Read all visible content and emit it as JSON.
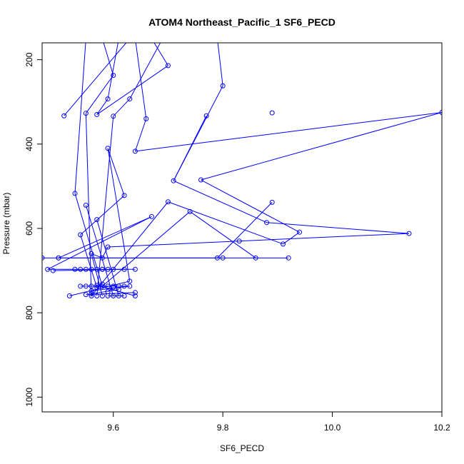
{
  "chart_data": {
    "type": "line",
    "title": "ATOM4 Northeast_Pacific_1 SF6_PECD",
    "xlabel": "SF6_PECD",
    "ylabel": "Pressure (mbar)",
    "xlim": [
      9.47,
      10.2
    ],
    "ylim": [
      1035,
      160
    ],
    "y_inverted": true,
    "xticks": [
      "9.6",
      "9.8",
      "10.0",
      "10.2"
    ],
    "yticks": [
      "200",
      "400",
      "600",
      "800",
      "1000"
    ],
    "series_color": "#0000ff",
    "marker": "open-circle",
    "grid": false,
    "legend": "none",
    "points": [
      [
        9.58,
        150
      ],
      [
        9.6,
        237
      ],
      [
        9.55,
        327
      ],
      [
        9.61,
        150
      ],
      [
        9.59,
        293
      ],
      [
        9.57,
        330
      ],
      [
        9.63,
        150
      ],
      [
        9.51,
        333
      ],
      [
        9.56,
        760
      ],
      [
        9.64,
        150
      ],
      [
        9.66,
        340
      ],
      [
        9.64,
        417
      ],
      [
        9.89,
        326
      ],
      [
        10.2,
        325
      ],
      [
        9.69,
        150
      ],
      [
        9.7,
        214
      ],
      [
        9.63,
        293
      ],
      [
        9.6,
        334
      ],
      [
        9.53,
        517
      ],
      [
        9.57,
        760
      ],
      [
        9.79,
        150
      ],
      [
        9.77,
        333
      ],
      [
        9.71,
        487
      ],
      [
        9.76,
        485
      ],
      [
        9.8,
        262
      ],
      [
        9.7,
        537
      ],
      [
        9.74,
        560
      ],
      [
        9.86,
        670
      ],
      [
        9.89,
        538
      ],
      [
        9.79,
        670
      ],
      [
        9.94,
        609
      ],
      [
        9.91,
        637
      ],
      [
        9.83,
        630
      ],
      [
        10.14,
        612
      ],
      [
        9.88,
        586
      ],
      [
        9.57,
        579
      ],
      [
        9.62,
        522
      ],
      [
        9.58,
        670
      ],
      [
        9.47,
        670
      ],
      [
        9.67,
        572
      ],
      [
        9.59,
        644
      ],
      [
        9.5,
        670
      ],
      [
        9.5,
        670
      ],
      [
        9.92,
        670
      ],
      [
        9.8,
        670
      ],
      [
        9.56,
        660
      ],
      [
        9.55,
        545
      ],
      [
        9.58,
        697
      ],
      [
        9.48,
        697
      ],
      [
        9.49,
        700
      ],
      [
        9.53,
        697
      ],
      [
        9.54,
        697
      ],
      [
        9.55,
        697
      ],
      [
        9.56,
        697
      ],
      [
        9.57,
        697
      ],
      [
        9.58,
        697
      ],
      [
        9.59,
        697
      ],
      [
        9.6,
        697
      ],
      [
        9.62,
        697
      ],
      [
        9.64,
        697
      ],
      [
        9.54,
        615
      ],
      [
        9.59,
        410
      ],
      [
        9.57,
        740
      ],
      [
        9.54,
        737
      ],
      [
        9.55,
        737
      ],
      [
        9.56,
        737
      ],
      [
        9.58,
        737
      ],
      [
        9.59,
        737
      ],
      [
        9.6,
        737
      ],
      [
        9.61,
        737
      ],
      [
        9.62,
        737
      ],
      [
        9.63,
        737
      ],
      [
        9.63,
        725
      ],
      [
        9.61,
        760
      ],
      [
        9.58,
        732
      ],
      [
        9.59,
        760
      ],
      [
        9.57,
        735
      ],
      [
        9.52,
        760
      ],
      [
        9.55,
        757
      ],
      [
        9.56,
        755
      ],
      [
        9.6,
        760
      ],
      [
        9.62,
        760
      ],
      [
        9.64,
        760
      ],
      [
        9.64,
        752
      ],
      [
        9.59,
        750
      ],
      [
        9.58,
        760
      ],
      [
        9.61,
        745
      ],
      [
        9.6,
        740
      ],
      [
        9.56,
        748
      ]
    ],
    "segments": [
      [
        [
          9.58,
          150
        ],
        [
          9.6,
          237
        ]
      ],
      [
        [
          9.6,
          237
        ],
        [
          9.55,
          327
        ]
      ],
      [
        [
          9.55,
          327
        ],
        [
          9.56,
          760
        ]
      ],
      [
        [
          9.61,
          150
        ],
        [
          9.59,
          293
        ]
      ],
      [
        [
          9.59,
          293
        ],
        [
          9.57,
          330
        ]
      ],
      [
        [
          9.63,
          150
        ],
        [
          9.51,
          333
        ]
      ],
      [
        [
          9.64,
          150
        ],
        [
          9.66,
          340
        ]
      ],
      [
        [
          9.66,
          340
        ],
        [
          9.64,
          417
        ]
      ],
      [
        [
          9.64,
          417
        ],
        [
          10.2,
          325
        ]
      ],
      [
        [
          9.69,
          150
        ],
        [
          9.63,
          293
        ]
      ],
      [
        [
          9.63,
          293
        ],
        [
          9.6,
          334
        ]
      ],
      [
        [
          9.6,
          334
        ],
        [
          9.57,
          760
        ]
      ],
      [
        [
          9.55,
          150
        ],
        [
          9.53,
          517
        ]
      ],
      [
        [
          9.53,
          517
        ],
        [
          9.58,
          737
        ]
      ],
      [
        [
          9.7,
          214
        ],
        [
          9.67,
          150
        ]
      ],
      [
        [
          9.7,
          214
        ],
        [
          9.57,
          330
        ]
      ],
      [
        [
          9.79,
          150
        ],
        [
          9.8,
          262
        ]
      ],
      [
        [
          9.8,
          262
        ],
        [
          9.71,
          487
        ]
      ],
      [
        [
          9.71,
          487
        ],
        [
          9.77,
          333
        ]
      ],
      [
        [
          9.71,
          487
        ],
        [
          9.88,
          586
        ]
      ],
      [
        [
          9.88,
          586
        ],
        [
          10.14,
          612
        ]
      ],
      [
        [
          10.14,
          612
        ],
        [
          9.59,
          644
        ]
      ],
      [
        [
          9.76,
          485
        ],
        [
          10.2,
          325
        ]
      ],
      [
        [
          9.76,
          485
        ],
        [
          9.94,
          609
        ]
      ],
      [
        [
          9.94,
          609
        ],
        [
          9.91,
          637
        ]
      ],
      [
        [
          9.91,
          637
        ],
        [
          9.7,
          537
        ]
      ],
      [
        [
          9.7,
          537
        ],
        [
          9.56,
          760
        ]
      ],
      [
        [
          9.86,
          670
        ],
        [
          9.74,
          560
        ]
      ],
      [
        [
          9.74,
          560
        ],
        [
          9.58,
          737
        ]
      ],
      [
        [
          9.89,
          538
        ],
        [
          9.79,
          670
        ]
      ],
      [
        [
          9.79,
          670
        ],
        [
          9.5,
          670
        ]
      ],
      [
        [
          9.47,
          670
        ],
        [
          9.92,
          670
        ]
      ],
      [
        [
          9.5,
          670
        ],
        [
          9.67,
          572
        ]
      ],
      [
        [
          9.67,
          572
        ],
        [
          9.48,
          697
        ]
      ],
      [
        [
          9.48,
          697
        ],
        [
          9.64,
          697
        ]
      ],
      [
        [
          9.49,
          700
        ],
        [
          9.62,
          697
        ]
      ],
      [
        [
          9.54,
          615
        ],
        [
          9.62,
          522
        ]
      ],
      [
        [
          9.62,
          522
        ],
        [
          9.59,
          410
        ]
      ],
      [
        [
          9.59,
          410
        ],
        [
          9.63,
          725
        ]
      ],
      [
        [
          9.54,
          615
        ],
        [
          9.57,
          740
        ]
      ],
      [
        [
          9.55,
          545
        ],
        [
          9.6,
          760
        ]
      ],
      [
        [
          9.57,
          579
        ],
        [
          9.61,
          760
        ]
      ],
      [
        [
          9.59,
          644
        ],
        [
          9.58,
          670
        ]
      ],
      [
        [
          9.58,
          670
        ],
        [
          9.56,
          660
        ]
      ],
      [
        [
          9.56,
          660
        ],
        [
          9.58,
          760
        ]
      ],
      [
        [
          9.54,
          737
        ],
        [
          9.63,
          737
        ]
      ],
      [
        [
          9.52,
          760
        ],
        [
          9.63,
          725
        ]
      ],
      [
        [
          9.55,
          757
        ],
        [
          9.64,
          752
        ]
      ],
      [
        [
          9.56,
          755
        ],
        [
          9.61,
          745
        ]
      ],
      [
        [
          9.57,
          735
        ],
        [
          9.64,
          760
        ]
      ],
      [
        [
          9.59,
          760
        ],
        [
          9.62,
          760
        ]
      ],
      [
        [
          9.59,
          750
        ],
        [
          9.6,
          740
        ]
      ],
      [
        [
          9.56,
          748
        ],
        [
          9.63,
          737
        ]
      ]
    ]
  }
}
